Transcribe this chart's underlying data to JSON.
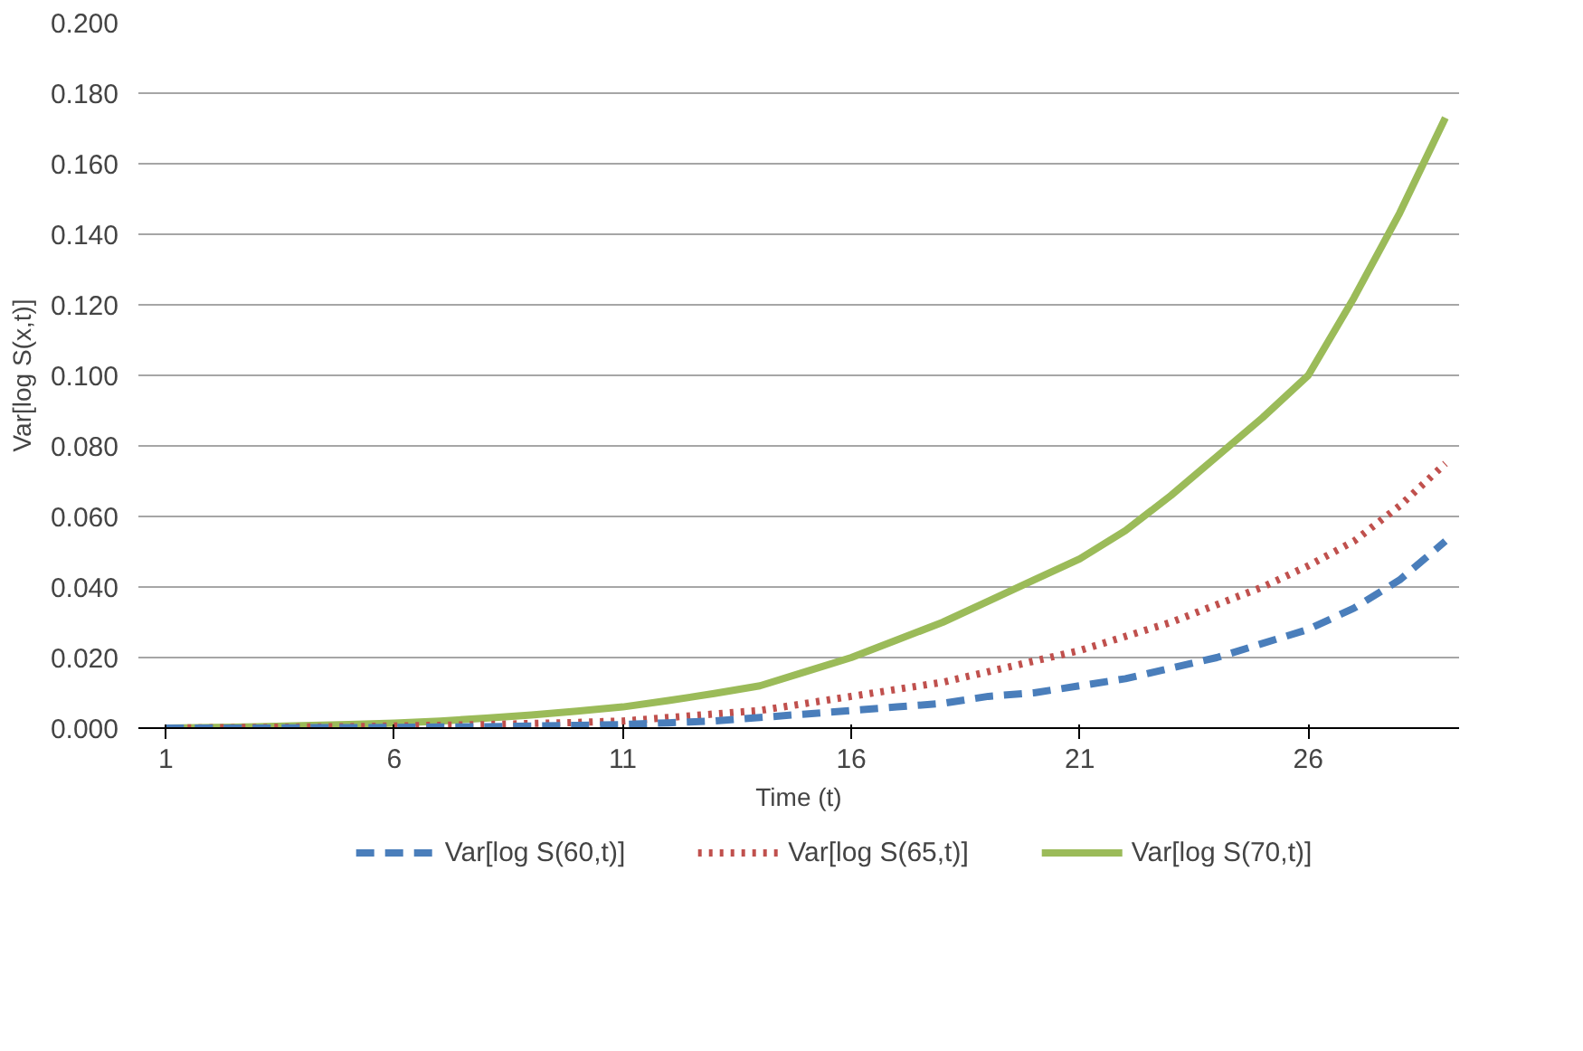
{
  "chart_data": {
    "type": "line",
    "xlabel": "Time (t)",
    "ylabel": "Var[log S(x,t)]",
    "x": [
      1,
      2,
      3,
      4,
      5,
      6,
      7,
      8,
      9,
      10,
      11,
      12,
      13,
      14,
      15,
      16,
      17,
      18,
      19,
      20,
      21,
      22,
      23,
      24,
      25,
      26,
      27,
      28,
      29
    ],
    "xlim": [
      0.4,
      29.3
    ],
    "xticks": [
      1,
      6,
      11,
      16,
      21,
      26
    ],
    "ylim": [
      0,
      0.2
    ],
    "yticks": [
      {
        "value": 0,
        "label": "0.000"
      },
      {
        "value": 0.02,
        "label": "0.020"
      },
      {
        "value": 0.04,
        "label": "0.040"
      },
      {
        "value": 0.06,
        "label": "0.060"
      },
      {
        "value": 0.08,
        "label": "0.080"
      },
      {
        "value": 0.1,
        "label": "0.100"
      },
      {
        "value": 0.12,
        "label": "0.120"
      },
      {
        "value": 0.14,
        "label": "0.140"
      },
      {
        "value": 0.16,
        "label": "0.160"
      },
      {
        "value": 0.18,
        "label": "0.180"
      },
      {
        "value": 0.2,
        "label": "0.200"
      }
    ],
    "grid": "y",
    "legend": "bottom",
    "marker": "none",
    "series": [
      {
        "name": "Var[log S(60,t)]",
        "color": "#4a7ebb",
        "line_style": "dashed",
        "values": [
          0,
          0,
          0,
          0.0001,
          0.0001,
          0.0002,
          0.0003,
          0.0004,
          0.0006,
          0.0008,
          0.001,
          0.0015,
          0.002,
          0.003,
          0.004,
          0.005,
          0.006,
          0.007,
          0.009,
          0.01,
          0.012,
          0.014,
          0.017,
          0.02,
          0.024,
          0.028,
          0.034,
          0.042,
          0.053
        ]
      },
      {
        "name": "Var[log S(65,t)]",
        "color": "#c0504d",
        "line_style": "dotted",
        "values": [
          0,
          0.0001,
          0.0002,
          0.0003,
          0.0004,
          0.0006,
          0.0008,
          0.001,
          0.0013,
          0.0016,
          0.002,
          0.003,
          0.004,
          0.005,
          0.007,
          0.009,
          0.011,
          0.013,
          0.016,
          0.019,
          0.022,
          0.026,
          0.03,
          0.035,
          0.04,
          0.046,
          0.053,
          0.063,
          0.075
        ]
      },
      {
        "name": "Var[log S(70,t)]",
        "color": "#9bbb59",
        "line_style": "solid",
        "values": [
          0,
          0.0002,
          0.0004,
          0.0007,
          0.001,
          0.0014,
          0.002,
          0.0028,
          0.0037,
          0.0048,
          0.006,
          0.0078,
          0.0098,
          0.012,
          0.016,
          0.02,
          0.025,
          0.03,
          0.036,
          0.042,
          0.048,
          0.056,
          0.066,
          0.077,
          0.088,
          0.1,
          0.122,
          0.146,
          0.173
        ]
      }
    ]
  }
}
